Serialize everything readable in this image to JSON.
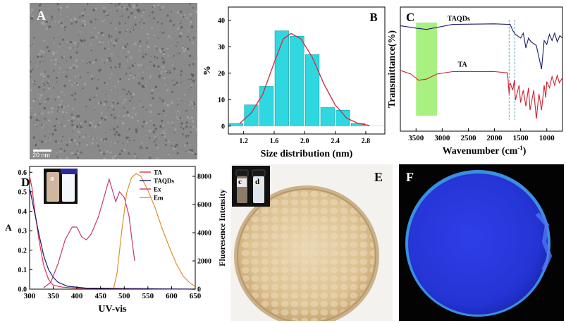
{
  "panels": {
    "A": {
      "letter": "A",
      "scalebar": "20 nm"
    },
    "E": {
      "letter": "E"
    },
    "F": {
      "letter": "F"
    }
  },
  "chart_data": [
    {
      "panel": "B",
      "type": "bar",
      "title": "",
      "letter": "B",
      "xlabel": "Size distribution (nm)",
      "ylabel": "%",
      "x": [
        1.1,
        1.2,
        1.3,
        1.4,
        1.5,
        1.6,
        1.7,
        1.8,
        1.9,
        2.0,
        2.1,
        2.2,
        2.3,
        2.4,
        2.5,
        2.6,
        2.7,
        2.8,
        2.9,
        3.0,
        3.1
      ],
      "xticks": [
        "1.2",
        "1.6",
        "2.0",
        "2.4",
        "2.8"
      ],
      "xtick_values": [
        1.2,
        1.6,
        2.0,
        2.4,
        2.8
      ],
      "yticks": [
        "0",
        "10",
        "20",
        "30",
        "40"
      ],
      "bars": [
        {
          "x": 1.1,
          "value": 1
        },
        {
          "x": 1.3,
          "value": 8
        },
        {
          "x": 1.5,
          "value": 15
        },
        {
          "x": 1.7,
          "value": 36
        },
        {
          "x": 1.9,
          "value": 34
        },
        {
          "x": 2.1,
          "value": 27
        },
        {
          "x": 2.3,
          "value": 7
        },
        {
          "x": 2.5,
          "value": 6
        },
        {
          "x": 2.7,
          "value": 1
        },
        {
          "x": 2.9,
          "value": 0
        }
      ],
      "fit": [
        [
          1.15,
          1
        ],
        [
          1.3,
          5
        ],
        [
          1.45,
          12
        ],
        [
          1.6,
          24
        ],
        [
          1.72,
          33
        ],
        [
          1.82,
          35
        ],
        [
          1.95,
          33
        ],
        [
          2.1,
          26
        ],
        [
          2.25,
          16
        ],
        [
          2.4,
          8
        ],
        [
          2.55,
          3
        ],
        [
          2.7,
          1
        ],
        [
          2.85,
          0.2
        ]
      ],
      "xlim": [
        1.0,
        3.05
      ],
      "ylim": [
        -3,
        45
      ],
      "colors": {
        "bar": "#2fd8e0",
        "fit": "#cc3344"
      }
    },
    {
      "panel": "C",
      "type": "line",
      "title": "",
      "letter": "C",
      "xlabel": "Wavenumber (cm",
      "xlabel_sup": "-1",
      "xlabel_end": ")",
      "ylabel": "Transmittance(%)",
      "xticks": [
        "3500",
        "3000",
        "2500",
        "2000",
        "1500",
        "1000"
      ],
      "xtick_values": [
        3500,
        3000,
        2500,
        2000,
        1500,
        1000
      ],
      "xlim": [
        3800,
        700
      ],
      "series": [
        {
          "name": "TAQDs",
          "color": "#1a1a66",
          "points": [
            [
              3800,
              70
            ],
            [
              3500,
              68
            ],
            [
              3300,
              67
            ],
            [
              2800,
              71
            ],
            [
              2000,
              71.5
            ],
            [
              1700,
              71
            ],
            [
              1650,
              66
            ],
            [
              1600,
              63
            ],
            [
              1500,
              60
            ],
            [
              1450,
              64
            ],
            [
              1400,
              52
            ],
            [
              1350,
              60
            ],
            [
              1300,
              57
            ],
            [
              1200,
              54
            ],
            [
              1100,
              35
            ],
            [
              1050,
              58
            ],
            [
              1000,
              55
            ],
            [
              950,
              63
            ],
            [
              900,
              58
            ],
            [
              850,
              64
            ],
            [
              800,
              57
            ],
            [
              750,
              62
            ],
            [
              700,
              60
            ]
          ]
        },
        {
          "name": "TA",
          "color": "#cc2233",
          "points": [
            [
              3800,
              34
            ],
            [
              3600,
              31
            ],
            [
              3450,
              26
            ],
            [
              3300,
              27
            ],
            [
              3100,
              31
            ],
            [
              2800,
              33
            ],
            [
              2000,
              33
            ],
            [
              1750,
              32
            ],
            [
              1720,
              15
            ],
            [
              1700,
              24
            ],
            [
              1650,
              18
            ],
            [
              1620,
              26
            ],
            [
              1600,
              10
            ],
            [
              1530,
              22
            ],
            [
              1500,
              8
            ],
            [
              1450,
              18
            ],
            [
              1400,
              5
            ],
            [
              1350,
              20
            ],
            [
              1320,
              2
            ],
            [
              1250,
              18
            ],
            [
              1200,
              -5
            ],
            [
              1150,
              15
            ],
            [
              1100,
              2
            ],
            [
              1050,
              22
            ],
            [
              1020,
              12
            ],
            [
              1000,
              25
            ],
            [
              950,
              20
            ],
            [
              900,
              29
            ],
            [
              850,
              22
            ],
            [
              800,
              30
            ],
            [
              760,
              24
            ],
            [
              700,
              28
            ]
          ]
        }
      ],
      "highlight": [
        3500,
        3100
      ],
      "dashed_lines": [
        1720,
        1610
      ],
      "ylim": [
        -15,
        85
      ],
      "colors": {
        "highlight": "#a8f07f",
        "dashed": "#5fa7b6"
      }
    },
    {
      "panel": "D",
      "type": "line",
      "title": "",
      "letter": "D",
      "xlabel": "UV-vis",
      "ylabel": "A",
      "ylabel_right": "Fluoresence Intensity",
      "xticks": [
        "300",
        "350",
        "400",
        "450",
        "500",
        "550",
        "600",
        "650"
      ],
      "xtick_values": [
        300,
        350,
        400,
        450,
        500,
        550,
        600,
        650
      ],
      "yticks_left": [
        "0.0",
        "0.1",
        "0.2",
        "0.3",
        "0.4",
        "0.5",
        "0.6"
      ],
      "yticks_left_values": [
        0,
        0.1,
        0.2,
        0.3,
        0.4,
        0.5,
        0.6
      ],
      "yticks_right": [
        "0",
        "2000",
        "4000",
        "6000",
        "8000"
      ],
      "yticks_right_values": [
        0,
        2000,
        4000,
        6000,
        8000
      ],
      "xlim": [
        300,
        650
      ],
      "ylim_left": [
        0,
        0.63
      ],
      "ylim_right": [
        0,
        8700
      ],
      "legend": [
        "TA",
        "TAQDs",
        "Ex",
        "Em"
      ],
      "legend_placement": "top-right",
      "inset_labels": [
        "a",
        "b"
      ],
      "series": [
        {
          "name": "TA",
          "axis": "left",
          "color": "#e0304a",
          "points": [
            [
              300,
              0.58
            ],
            [
              305,
              0.52
            ],
            [
              310,
              0.42
            ],
            [
              320,
              0.25
            ],
            [
              330,
              0.12
            ],
            [
              340,
              0.05
            ],
            [
              350,
              0.02
            ],
            [
              370,
              0.01
            ],
            [
              400,
              0.005
            ],
            [
              650,
              0.0
            ]
          ]
        },
        {
          "name": "TAQDs",
          "axis": "left",
          "color": "#1a1a66",
          "points": [
            [
              300,
              0.52
            ],
            [
              310,
              0.4
            ],
            [
              320,
              0.28
            ],
            [
              330,
              0.17
            ],
            [
              340,
              0.1
            ],
            [
              350,
              0.06
            ],
            [
              360,
              0.035
            ],
            [
              380,
              0.015
            ],
            [
              420,
              0.005
            ],
            [
              650,
              0.0
            ]
          ]
        },
        {
          "name": "Ex",
          "axis": "right",
          "color": "#c8386e",
          "points": [
            [
              330,
              100
            ],
            [
              345,
              500
            ],
            [
              360,
              1800
            ],
            [
              375,
              3500
            ],
            [
              390,
              4400
            ],
            [
              400,
              4400
            ],
            [
              410,
              3700
            ],
            [
              420,
              3500
            ],
            [
              430,
              3900
            ],
            [
              445,
              5100
            ],
            [
              458,
              6600
            ],
            [
              468,
              7800
            ],
            [
              475,
              7000
            ],
            [
              482,
              6200
            ],
            [
              490,
              6900
            ],
            [
              500,
              6500
            ],
            [
              510,
              5200
            ],
            [
              518,
              3000
            ],
            [
              522,
              2000
            ]
          ]
        },
        {
          "name": "Em",
          "axis": "right",
          "color": "#e09030",
          "points": [
            [
              478,
              100
            ],
            [
              485,
              1200
            ],
            [
              495,
              4200
            ],
            [
              505,
              6800
            ],
            [
              515,
              7900
            ],
            [
              525,
              8200
            ],
            [
              535,
              8000
            ],
            [
              550,
              7000
            ],
            [
              565,
              5800
            ],
            [
              580,
              4300
            ],
            [
              595,
              3000
            ],
            [
              610,
              1800
            ],
            [
              625,
              900
            ],
            [
              640,
              400
            ],
            [
              650,
              200
            ]
          ]
        }
      ]
    }
  ],
  "insets": {
    "E": [
      "c",
      "d"
    ]
  }
}
